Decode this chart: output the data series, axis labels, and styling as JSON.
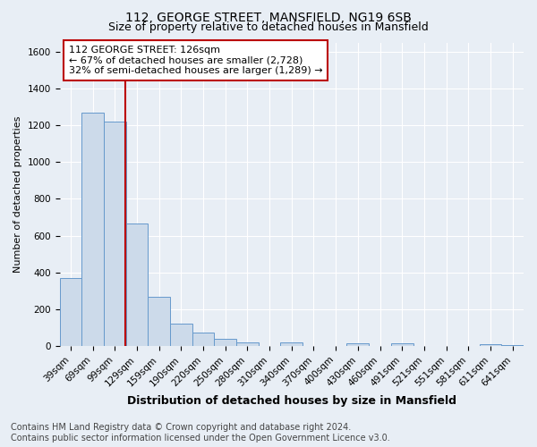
{
  "title": "112, GEORGE STREET, MANSFIELD, NG19 6SB",
  "subtitle": "Size of property relative to detached houses in Mansfield",
  "xlabel": "Distribution of detached houses by size in Mansfield",
  "ylabel": "Number of detached properties",
  "categories": [
    "39sqm",
    "69sqm",
    "99sqm",
    "129sqm",
    "159sqm",
    "190sqm",
    "220sqm",
    "250sqm",
    "280sqm",
    "310sqm",
    "340sqm",
    "370sqm",
    "400sqm",
    "430sqm",
    "460sqm",
    "491sqm",
    "521sqm",
    "551sqm",
    "581sqm",
    "611sqm",
    "641sqm"
  ],
  "bar_values": [
    370,
    1270,
    1220,
    665,
    270,
    120,
    75,
    40,
    20,
    0,
    20,
    0,
    0,
    15,
    0,
    15,
    0,
    0,
    0,
    10,
    5
  ],
  "bar_color": "#ccdaea",
  "bar_edge_color": "#6699cc",
  "vline_position": 2.48,
  "vline_color": "#bb0000",
  "ylim": [
    0,
    1650
  ],
  "yticks": [
    0,
    200,
    400,
    600,
    800,
    1000,
    1200,
    1400,
    1600
  ],
  "annotation_title": "112 GEORGE STREET: 126sqm",
  "annotation_line1": "← 67% of detached houses are smaller (2,728)",
  "annotation_line2": "32% of semi-detached houses are larger (1,289) →",
  "annotation_box_facecolor": "#ffffff",
  "annotation_box_edgecolor": "#bb0000",
  "footer_line1": "Contains HM Land Registry data © Crown copyright and database right 2024.",
  "footer_line2": "Contains public sector information licensed under the Open Government Licence v3.0.",
  "fig_facecolor": "#e8eef5",
  "plot_facecolor": "#e8eef5",
  "grid_color": "#ffffff",
  "title_fontsize": 10,
  "subtitle_fontsize": 9,
  "xlabel_fontsize": 9,
  "ylabel_fontsize": 8,
  "tick_fontsize": 7.5,
  "annotation_fontsize": 8,
  "footer_fontsize": 7
}
